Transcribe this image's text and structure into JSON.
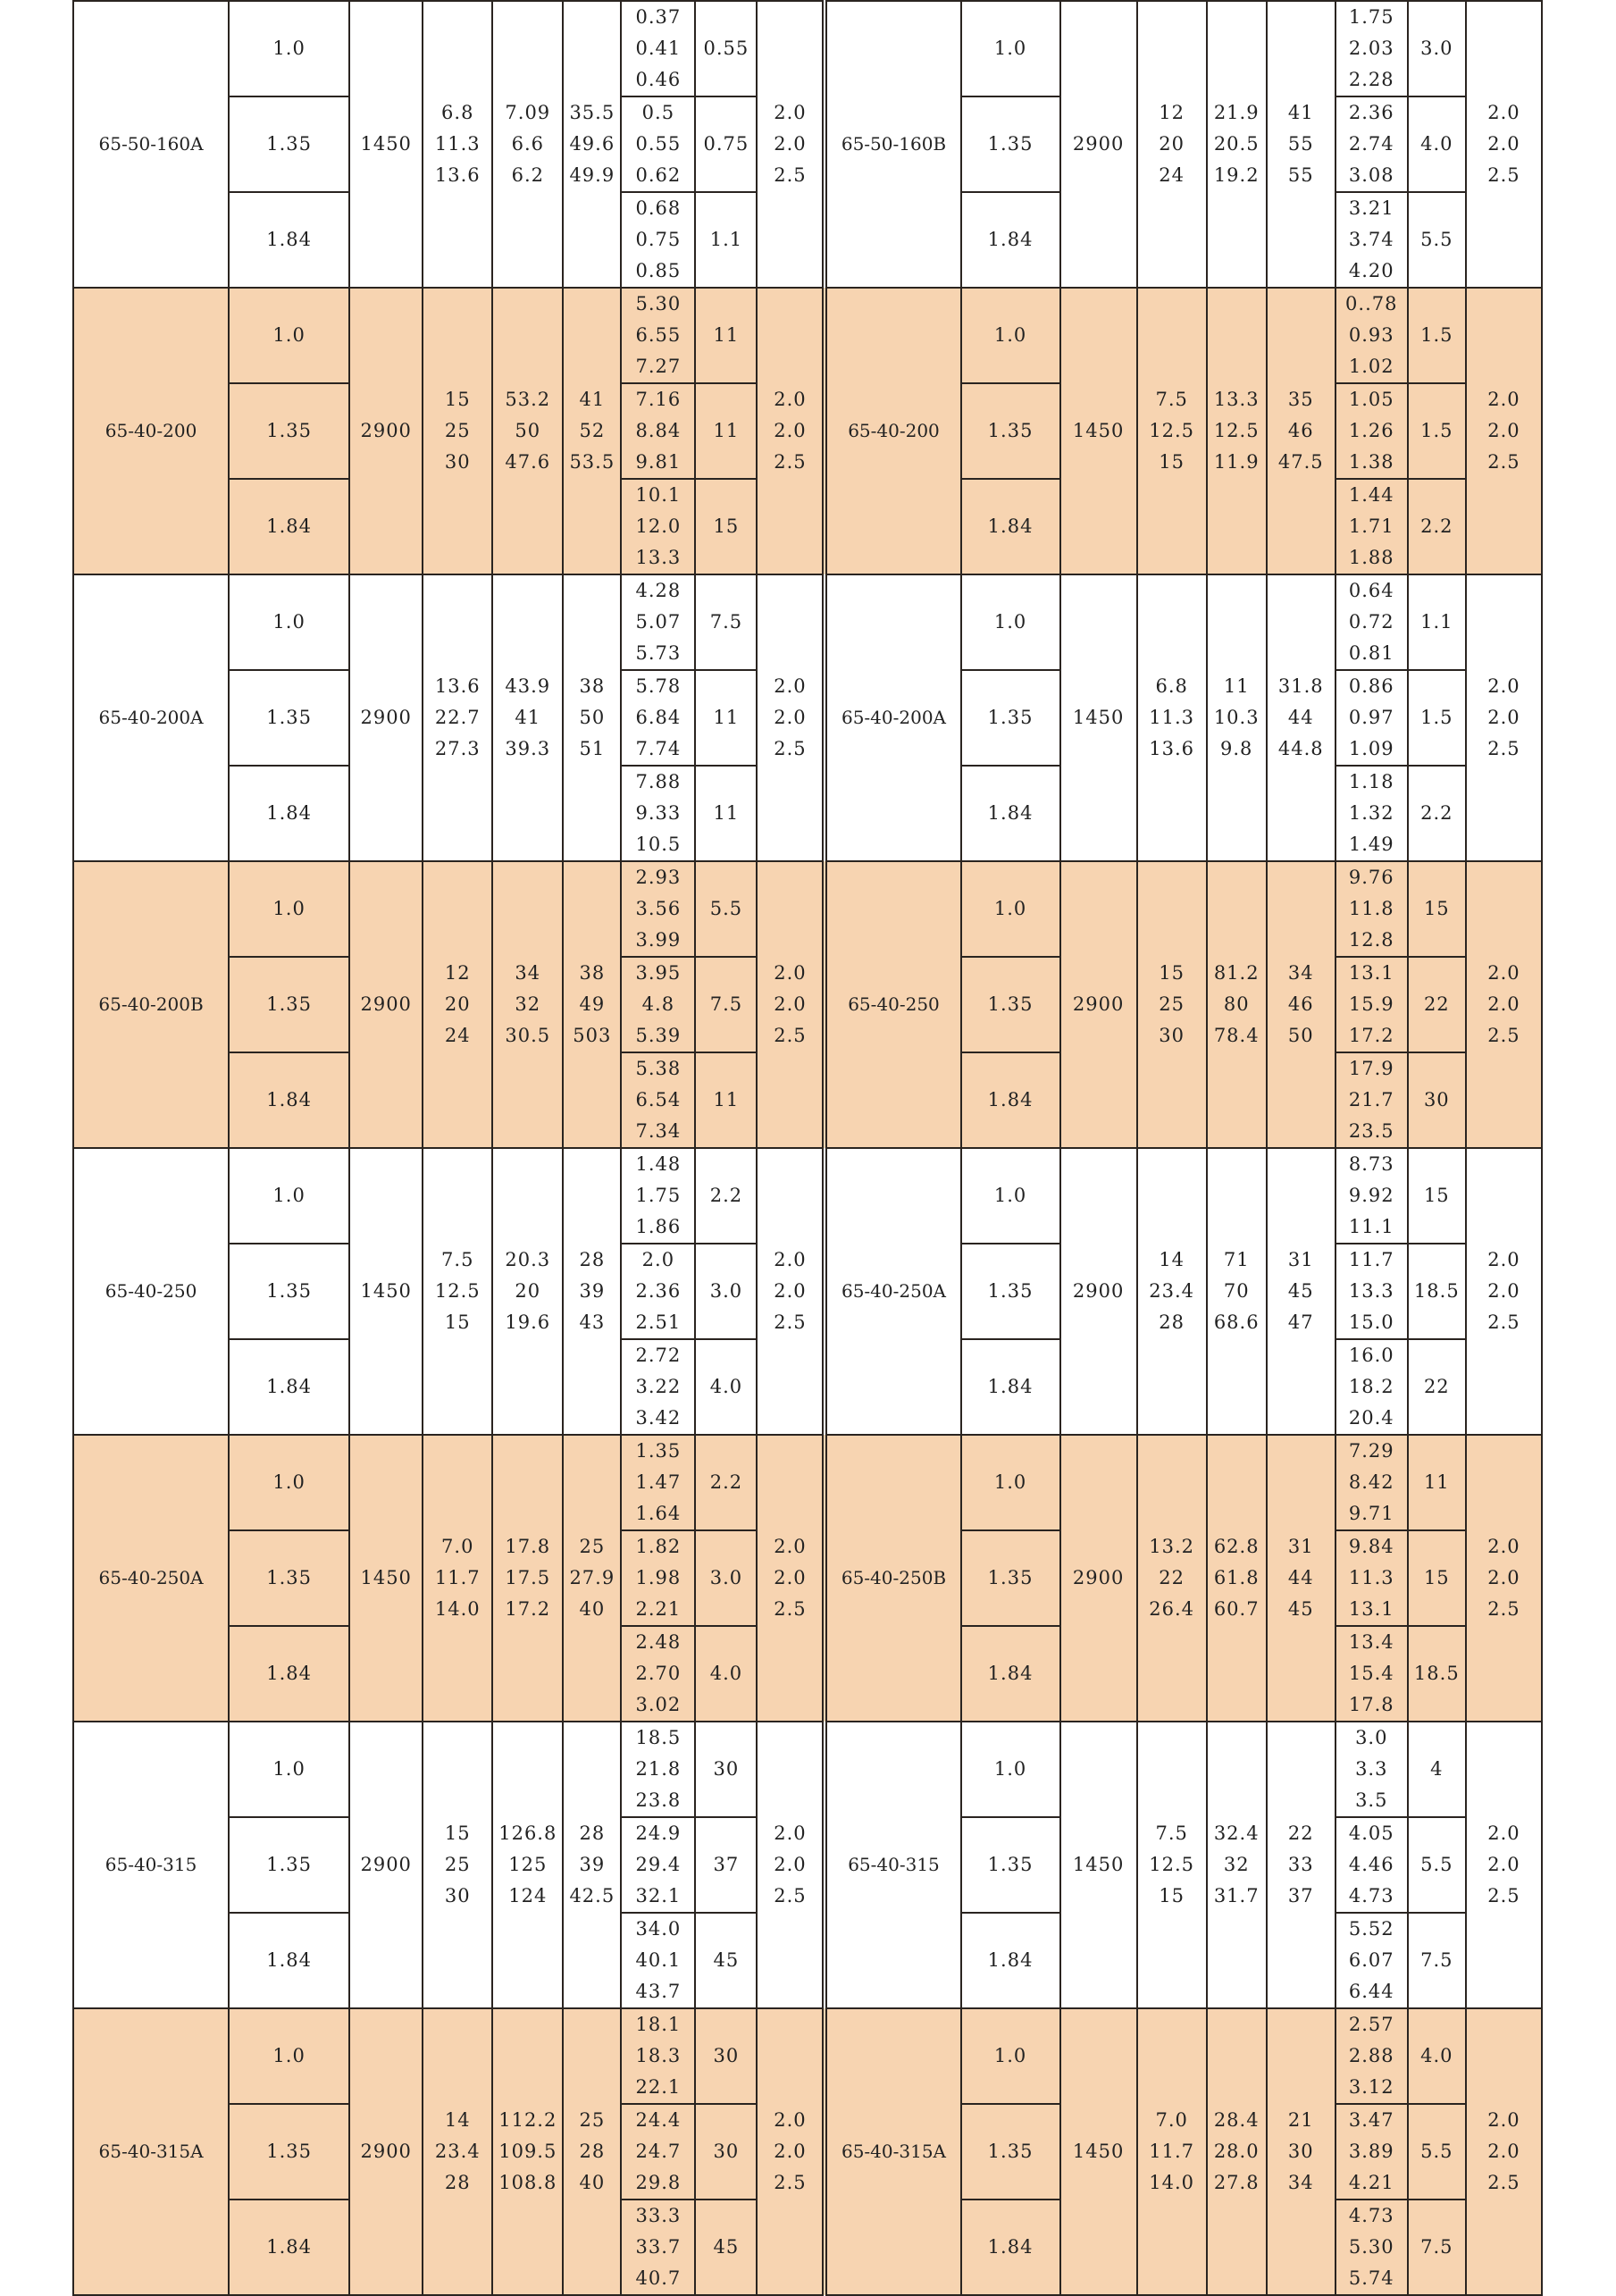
{
  "ratios": [
    "1.0",
    "1.35",
    "1.84"
  ],
  "colors": {
    "band": "#f7d4b1",
    "plain": "#ffffff",
    "border": "#2a2420"
  },
  "groups": [
    {
      "left": {
        "model": "65-50-160A",
        "speed": "1450",
        "flow": [
          "6.8",
          "11.3",
          "13.6"
        ],
        "head": [
          "7.09",
          "6.6",
          "6.2"
        ],
        "eff": [
          "35.5",
          "49.6",
          "49.9"
        ],
        "power": [
          [
            "0.37",
            "0.41",
            "0.46"
          ],
          [
            "0.5",
            "0.55",
            "0.62"
          ],
          [
            "0.68",
            "0.75",
            "0.85"
          ]
        ],
        "motor": [
          "0.55",
          "0.75",
          "1.1"
        ],
        "npsh": [
          "2.0",
          "2.0",
          "2.5"
        ]
      },
      "right": {
        "model": "65-50-160B",
        "speed": "2900",
        "flow": [
          "12",
          "20",
          "24"
        ],
        "head": [
          "21.9",
          "20.5",
          "19.2"
        ],
        "eff": [
          "41",
          "55",
          "55"
        ],
        "power": [
          [
            "1.75",
            "2.03",
            "2.28"
          ],
          [
            "2.36",
            "2.74",
            "3.08"
          ],
          [
            "3.21",
            "3.74",
            "4.20"
          ]
        ],
        "motor": [
          "3.0",
          "4.0",
          "5.5"
        ],
        "npsh": [
          "2.0",
          "2.0",
          "2.5"
        ]
      }
    },
    {
      "left": {
        "model": "65-40-200",
        "speed": "2900",
        "flow": [
          "15",
          "25",
          "30"
        ],
        "head": [
          "53.2",
          "50",
          "47.6"
        ],
        "eff": [
          "41",
          "52",
          "53.5"
        ],
        "power": [
          [
            "5.30",
            "6.55",
            "7.27"
          ],
          [
            "7.16",
            "8.84",
            "9.81"
          ],
          [
            "10.1",
            "12.0",
            "13.3"
          ]
        ],
        "motor": [
          "11",
          "11",
          "15"
        ],
        "npsh": [
          "2.0",
          "2.0",
          "2.5"
        ]
      },
      "right": {
        "model": "65-40-200",
        "speed": "1450",
        "flow": [
          "7.5",
          "12.5",
          "15"
        ],
        "head": [
          "13.3",
          "12.5",
          "11.9"
        ],
        "eff": [
          "35",
          "46",
          "47.5"
        ],
        "power": [
          [
            "0..78",
            "0.93",
            "1.02"
          ],
          [
            "1.05",
            "1.26",
            "1.38"
          ],
          [
            "1.44",
            "1.71",
            "1.88"
          ]
        ],
        "motor": [
          "1.5",
          "1.5",
          "2.2"
        ],
        "npsh": [
          "2.0",
          "2.0",
          "2.5"
        ]
      }
    },
    {
      "left": {
        "model": "65-40-200A",
        "speed": "2900",
        "flow": [
          "13.6",
          "22.7",
          "27.3"
        ],
        "head": [
          "43.9",
          "41",
          "39.3"
        ],
        "eff": [
          "38",
          "50",
          "51"
        ],
        "power": [
          [
            "4.28",
            "5.07",
            "5.73"
          ],
          [
            "5.78",
            "6.84",
            "7.74"
          ],
          [
            "7.88",
            "9.33",
            "10.5"
          ]
        ],
        "motor": [
          "7.5",
          "11",
          "11"
        ],
        "npsh": [
          "2.0",
          "2.0",
          "2.5"
        ]
      },
      "right": {
        "model": "65-40-200A",
        "speed": "1450",
        "flow": [
          "6.8",
          "11.3",
          "13.6"
        ],
        "head": [
          "11",
          "10.3",
          "9.8"
        ],
        "eff": [
          "31.8",
          "44",
          "44.8"
        ],
        "power": [
          [
            "0.64",
            "0.72",
            "0.81"
          ],
          [
            "0.86",
            "0.97",
            "1.09"
          ],
          [
            "1.18",
            "1.32",
            "1.49"
          ]
        ],
        "motor": [
          "1.1",
          "1.5",
          "2.2"
        ],
        "npsh": [
          "2.0",
          "2.0",
          "2.5"
        ]
      }
    },
    {
      "left": {
        "model": "65-40-200B",
        "speed": "2900",
        "flow": [
          "12",
          "20",
          "24"
        ],
        "head": [
          "34",
          "32",
          "30.5"
        ],
        "eff": [
          "38",
          "49",
          "503"
        ],
        "power": [
          [
            "2.93",
            "3.56",
            "3.99"
          ],
          [
            "3.95",
            "4.8",
            "5.39"
          ],
          [
            "5.38",
            "6.54",
            "7.34"
          ]
        ],
        "motor": [
          "5.5",
          "7.5",
          "11"
        ],
        "npsh": [
          "2.0",
          "2.0",
          "2.5"
        ]
      },
      "right": {
        "model": "65-40-250",
        "speed": "2900",
        "flow": [
          "15",
          "25",
          "30"
        ],
        "head": [
          "81.2",
          "80",
          "78.4"
        ],
        "eff": [
          "34",
          "46",
          "50"
        ],
        "power": [
          [
            "9.76",
            "11.8",
            "12.8"
          ],
          [
            "13.1",
            "15.9",
            "17.2"
          ],
          [
            "17.9",
            "21.7",
            "23.5"
          ]
        ],
        "motor": [
          "15",
          "22",
          "30"
        ],
        "npsh": [
          "2.0",
          "2.0",
          "2.5"
        ]
      }
    },
    {
      "left": {
        "model": "65-40-250",
        "speed": "1450",
        "flow": [
          "7.5",
          "12.5",
          "15"
        ],
        "head": [
          "20.3",
          "20",
          "19.6"
        ],
        "eff": [
          "28",
          "39",
          "43"
        ],
        "power": [
          [
            "1.48",
            "1.75",
            "1.86"
          ],
          [
            "2.0",
            "2.36",
            "2.51"
          ],
          [
            "2.72",
            "3.22",
            "3.42"
          ]
        ],
        "motor": [
          "2.2",
          "3.0",
          "4.0"
        ],
        "npsh": [
          "2.0",
          "2.0",
          "2.5"
        ]
      },
      "right": {
        "model": "65-40-250A",
        "speed": "2900",
        "flow": [
          "14",
          "23.4",
          "28"
        ],
        "head": [
          "71",
          "70",
          "68.6"
        ],
        "eff": [
          "31",
          "45",
          "47"
        ],
        "power": [
          [
            "8.73",
            "9.92",
            "11.1"
          ],
          [
            "11.7",
            "13.3",
            "15.0"
          ],
          [
            "16.0",
            "18.2",
            "20.4"
          ]
        ],
        "motor": [
          "15",
          "18.5",
          "22"
        ],
        "npsh": [
          "2.0",
          "2.0",
          "2.5"
        ]
      }
    },
    {
      "left": {
        "model": "65-40-250A",
        "speed": "1450",
        "flow": [
          "7.0",
          "11.7",
          "14.0"
        ],
        "head": [
          "17.8",
          "17.5",
          "17.2"
        ],
        "eff": [
          "25",
          "27.9",
          "40"
        ],
        "power": [
          [
            "1.35",
            "1.47",
            "1.64"
          ],
          [
            "1.82",
            "1.98",
            "2.21"
          ],
          [
            "2.48",
            "2.70",
            "3.02"
          ]
        ],
        "motor": [
          "2.2",
          "3.0",
          "4.0"
        ],
        "npsh": [
          "2.0",
          "2.0",
          "2.5"
        ]
      },
      "right": {
        "model": "65-40-250B",
        "speed": "2900",
        "flow": [
          "13.2",
          "22",
          "26.4"
        ],
        "head": [
          "62.8",
          "61.8",
          "60.7"
        ],
        "eff": [
          "31",
          "44",
          "45"
        ],
        "power": [
          [
            "7.29",
            "8.42",
            "9.71"
          ],
          [
            "9.84",
            "11.3",
            "13.1"
          ],
          [
            "13.4",
            "15.4",
            "17.8"
          ]
        ],
        "motor": [
          "11",
          "15",
          "18.5"
        ],
        "npsh": [
          "2.0",
          "2.0",
          "2.5"
        ]
      }
    },
    {
      "left": {
        "model": "65-40-315",
        "speed": "2900",
        "flow": [
          "15",
          "25",
          "30"
        ],
        "head": [
          "126.8",
          "125",
          "124"
        ],
        "eff": [
          "28",
          "39",
          "42.5"
        ],
        "power": [
          [
            "18.5",
            "21.8",
            "23.8"
          ],
          [
            "24.9",
            "29.4",
            "32.1"
          ],
          [
            "34.0",
            "40.1",
            "43.7"
          ]
        ],
        "motor": [
          "30",
          "37",
          "45"
        ],
        "npsh": [
          "2.0",
          "2.0",
          "2.5"
        ]
      },
      "right": {
        "model": "65-40-315",
        "speed": "1450",
        "flow": [
          "7.5",
          "12.5",
          "15"
        ],
        "head": [
          "32.4",
          "32",
          "31.7"
        ],
        "eff": [
          "22",
          "33",
          "37"
        ],
        "power": [
          [
            "3.0",
            "3.3",
            "3.5"
          ],
          [
            "4.05",
            "4.46",
            "4.73"
          ],
          [
            "5.52",
            "6.07",
            "6.44"
          ]
        ],
        "motor": [
          "4",
          "5.5",
          "7.5"
        ],
        "npsh": [
          "2.0",
          "2.0",
          "2.5"
        ]
      }
    },
    {
      "left": {
        "model": "65-40-315A",
        "speed": "2900",
        "flow": [
          "14",
          "23.4",
          "28"
        ],
        "head": [
          "112.2",
          "109.5",
          "108.8"
        ],
        "eff": [
          "25",
          "28",
          "40"
        ],
        "power": [
          [
            "18.1",
            "18.3",
            "22.1"
          ],
          [
            "24.4",
            "24.7",
            "29.8"
          ],
          [
            "33.3",
            "33.7",
            "40.7"
          ]
        ],
        "motor": [
          "30",
          "30",
          "45"
        ],
        "npsh": [
          "2.0",
          "2.0",
          "2.5"
        ]
      },
      "right": {
        "model": "65-40-315A",
        "speed": "1450",
        "flow": [
          "7.0",
          "11.7",
          "14.0"
        ],
        "head": [
          "28.4",
          "28.0",
          "27.8"
        ],
        "eff": [
          "21",
          "30",
          "34"
        ],
        "power": [
          [
            "2.57",
            "2.88",
            "3.12"
          ],
          [
            "3.47",
            "3.89",
            "4.21"
          ],
          [
            "4.73",
            "5.30",
            "5.74"
          ]
        ],
        "motor": [
          "4.0",
          "5.5",
          "7.5"
        ],
        "npsh": [
          "2.0",
          "2.0",
          "2.5"
        ]
      }
    }
  ]
}
